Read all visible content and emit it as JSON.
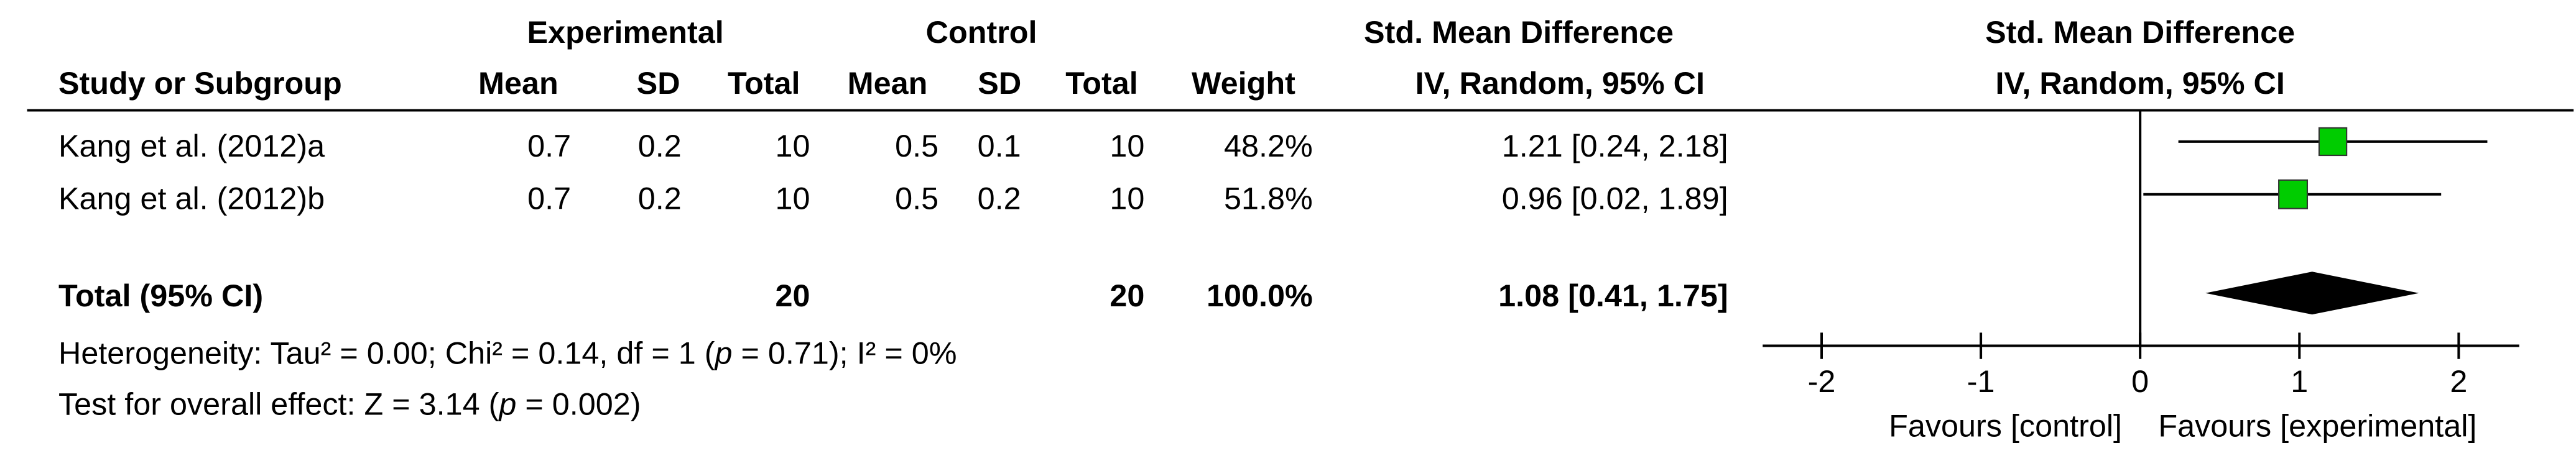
{
  "chart_data": {
    "type": "forest",
    "headers": {
      "group_experimental": "Experimental",
      "group_control": "Control",
      "smd_table": "Std. Mean Difference",
      "smd_plot": "Std. Mean Difference",
      "study": "Study or Subgroup",
      "exp_mean": "Mean",
      "exp_sd": "SD",
      "exp_total": "Total",
      "ctl_mean": "Mean",
      "ctl_sd": "SD",
      "ctl_total": "Total",
      "weight": "Weight",
      "method_table": "IV, Random, 95% CI",
      "method_plot": "IV, Random, 95% CI"
    },
    "studies": [
      {
        "name": "Kang et al. (2012)a",
        "exp_mean": 0.7,
        "exp_sd": 0.2,
        "exp_total": 10,
        "ctl_mean": 0.5,
        "ctl_sd": 0.1,
        "ctl_total": 10,
        "weight": 48.2,
        "weight_label": "48.2%",
        "smd": 1.21,
        "ci_low": 0.24,
        "ci_high": 2.18,
        "ci_label": "1.21 [0.24, 2.18]"
      },
      {
        "name": "Kang et al. (2012)b",
        "exp_mean": 0.7,
        "exp_sd": 0.2,
        "exp_total": 10,
        "ctl_mean": 0.5,
        "ctl_sd": 0.2,
        "ctl_total": 10,
        "weight": 51.8,
        "weight_label": "51.8%",
        "smd": 0.96,
        "ci_low": 0.02,
        "ci_high": 1.89,
        "ci_label": "0.96 [0.02, 1.89]"
      }
    ],
    "total": {
      "name": "Total (95% CI)",
      "exp_total": 20,
      "ctl_total": 20,
      "weight_label": "100.0%",
      "smd": 1.08,
      "ci_low": 0.41,
      "ci_high": 1.75,
      "ci_label": "1.08 [0.41, 1.75]"
    },
    "heterogeneity": [
      "Heterogeneity: Tau² = 0.00; Chi² = 0.14, df = 1 (",
      "p",
      " = 0.71); I² = 0%"
    ],
    "overall_effect": [
      "Test for overall effect: Z = 3.14 (",
      "p",
      " = 0.002)"
    ],
    "xlim": [
      -2.37,
      2.38
    ],
    "xticks": [
      -2,
      -1,
      0,
      1,
      2
    ],
    "favours_left": "Favours [control]",
    "favours_right": "Favours [experimental]",
    "marker_color": "#00cc00",
    "diamond_color": "#000000"
  }
}
